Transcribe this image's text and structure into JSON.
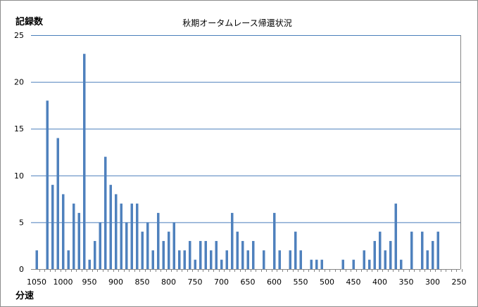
{
  "chart_data": {
    "type": "bar",
    "title": "秋期オータムレース帰還状況",
    "ylabel": "記録数",
    "xlabel": "分速",
    "ylim": [
      0,
      25
    ],
    "yticks": [
      0,
      5,
      10,
      15,
      20,
      25
    ],
    "xlim": [
      1050,
      250
    ],
    "xticks": [
      1050,
      1000,
      950,
      900,
      850,
      800,
      750,
      700,
      650,
      600,
      550,
      500,
      450,
      400,
      350,
      300,
      250
    ],
    "grid": true,
    "colors": {
      "bar": "#4f81bd",
      "grid": "#4a7ebb",
      "axis": "#868686"
    },
    "categories": [
      1050,
      1040,
      1030,
      1020,
      1010,
      1000,
      990,
      980,
      970,
      960,
      950,
      940,
      930,
      920,
      910,
      900,
      890,
      880,
      870,
      860,
      850,
      840,
      830,
      820,
      810,
      800,
      790,
      780,
      770,
      760,
      750,
      740,
      730,
      720,
      710,
      700,
      690,
      680,
      670,
      660,
      650,
      640,
      630,
      620,
      610,
      600,
      590,
      580,
      570,
      560,
      550,
      540,
      530,
      520,
      510,
      500,
      490,
      480,
      470,
      460,
      450,
      440,
      430,
      420,
      410,
      400,
      390,
      380,
      370,
      360,
      350,
      340,
      330,
      320,
      310,
      300,
      290,
      280,
      270,
      260,
      250
    ],
    "values": [
      2,
      0,
      18,
      9,
      14,
      8,
      2,
      7,
      6,
      23,
      1,
      3,
      5,
      12,
      9,
      8,
      7,
      5,
      7,
      7,
      4,
      5,
      2,
      6,
      3,
      4,
      5,
      2,
      2,
      3,
      1,
      3,
      3,
      2,
      3,
      1,
      2,
      6,
      4,
      3,
      2,
      3,
      0,
      2,
      0,
      6,
      2,
      0,
      2,
      4,
      2,
      0,
      1,
      1,
      1,
      0,
      0,
      0,
      1,
      0,
      1,
      0,
      2,
      1,
      3,
      4,
      2,
      3,
      7,
      1,
      0,
      4,
      0,
      4,
      2,
      3,
      4,
      0,
      0,
      0,
      0
    ]
  }
}
